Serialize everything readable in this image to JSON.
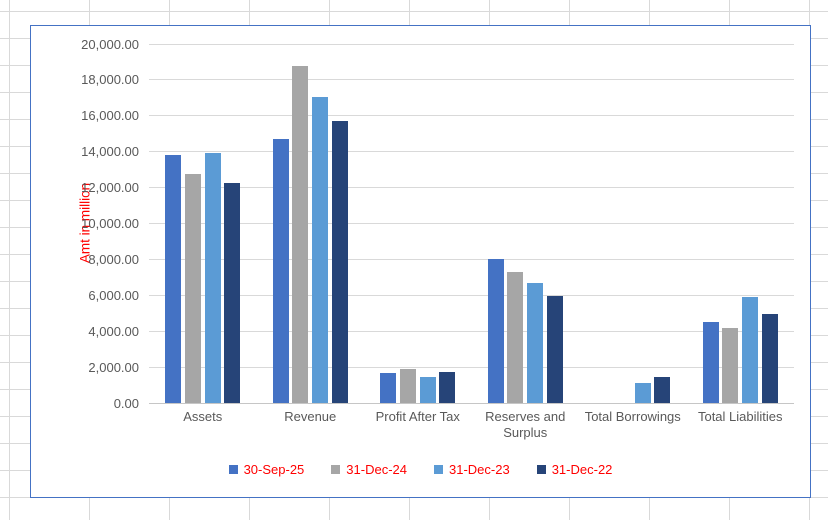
{
  "chart_data": {
    "type": "bar",
    "title": "",
    "xlabel": "",
    "ylabel": "Amt in million",
    "ylim": [
      0,
      20000
    ],
    "ytick_step": 2000,
    "y_tick_labels": [
      "0.00",
      "2,000.00",
      "4,000.00",
      "6,000.00",
      "8,000.00",
      "10,000.00",
      "12,000.00",
      "14,000.00",
      "16,000.00",
      "18,000.00",
      "20,000.00"
    ],
    "grid": true,
    "legend_position": "bottom",
    "categories": [
      "Assets",
      "Revenue",
      "Profit After Tax",
      "Reserves and Surplus",
      "Total Borrowings",
      "Total Liabilities"
    ],
    "series": [
      {
        "name": "30-Sep-25",
        "color": "#4472C4",
        "values": [
          13800,
          14700,
          1650,
          8000,
          0,
          4540
        ]
      },
      {
        "name": "31-Dec-24",
        "color": "#A6A6A6",
        "values": [
          12750,
          18750,
          1900,
          7300,
          0,
          4170
        ]
      },
      {
        "name": "31-Dec-23",
        "color": "#5B9BD5",
        "values": [
          13950,
          17050,
          1470,
          6700,
          1100,
          5890
        ]
      },
      {
        "name": "31-Dec-22",
        "color": "#264478",
        "values": [
          12250,
          15700,
          1730,
          5940,
          1430,
          4960
        ]
      }
    ],
    "colors": {
      "axis_title_text": "#FF0000",
      "legend_text": "#FF0000",
      "tick_label_text": "#595959",
      "chart_border": "#4472C4",
      "plot_gridline": "#D9D9D9"
    }
  }
}
